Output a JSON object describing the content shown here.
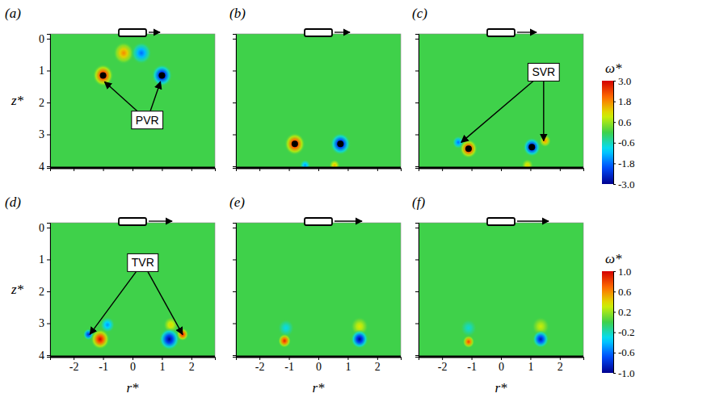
{
  "chart_data": {
    "type": "heatmap",
    "xlabel": "r*",
    "ylabel": "z*",
    "xlim": [
      -2.8,
      2.8
    ],
    "ylim": [
      -0.15,
      4.05
    ],
    "xticks": [
      -2,
      -1,
      0,
      1,
      2
    ],
    "yticks": [
      0,
      1,
      2,
      3,
      4
    ],
    "rows": [
      {
        "colorbar": {
          "title": "ω*",
          "range": [
            -3,
            3
          ],
          "ticks": [
            {
              "value": 3,
              "label": "3.0"
            },
            {
              "value": 1.8,
              "label": "1.8"
            },
            {
              "value": 0.6,
              "label": "0.6"
            },
            {
              "value": -0.6,
              "label": "-0.6"
            },
            {
              "value": -1.8,
              "label": "-1.8"
            },
            {
              "value": -3,
              "label": "-3.0"
            }
          ]
        },
        "panels": [
          {
            "label": "(a)",
            "tick_labels": "y",
            "vortices": [
              {
                "r": -0.3,
                "z": 0.45,
                "omega": 1.8,
                "radius": 0.35
              },
              {
                "r": 0.3,
                "z": 0.45,
                "omega": -1.8,
                "radius": 0.35
              },
              {
                "r": -1.0,
                "z": 1.15,
                "omega": 3.0,
                "radius": 0.35,
                "marker": "dot"
              },
              {
                "r": 1.0,
                "z": 1.15,
                "omega": -3.0,
                "radius": 0.35,
                "marker": "dot"
              }
            ],
            "annotation": {
              "text": "PVR",
              "at": [
                0.5,
                2.55
              ],
              "targets": [
                [
                  -0.95,
                  1.35
                ],
                [
                  0.95,
                  1.35
                ]
              ]
            }
          },
          {
            "label": "(b)",
            "tick_labels": false,
            "vortices": [
              {
                "r": -0.45,
                "z": 3.97,
                "omega": -1.5,
                "radius": 0.18
              },
              {
                "r": 0.55,
                "z": 3.97,
                "omega": 1.5,
                "radius": 0.18
              },
              {
                "r": -0.8,
                "z": 3.3,
                "omega": 3.0,
                "radius": 0.35,
                "marker": "dot"
              },
              {
                "r": 0.75,
                "z": 3.3,
                "omega": -3.0,
                "radius": 0.35,
                "marker": "dot"
              }
            ]
          },
          {
            "label": "(c)",
            "tick_labels": false,
            "vortices": [
              {
                "r": -1.45,
                "z": 3.25,
                "omega": -1.8,
                "radius": 0.2
              },
              {
                "r": 1.5,
                "z": 3.2,
                "omega": 1.8,
                "radius": 0.2
              },
              {
                "r": 0.9,
                "z": 3.97,
                "omega": 1.2,
                "radius": 0.2
              },
              {
                "r": -1.1,
                "z": 3.45,
                "omega": 3.0,
                "radius": 0.3,
                "marker": "dot"
              },
              {
                "r": 1.05,
                "z": 3.4,
                "omega": -3.0,
                "radius": 0.3,
                "marker": "dot"
              }
            ],
            "annotation": {
              "text": "SVR",
              "at": [
                1.45,
                1.05
              ],
              "targets": [
                [
                  -1.35,
                  3.25
                ],
                [
                  1.45,
                  3.2
                ]
              ]
            }
          }
        ]
      },
      {
        "colorbar": {
          "title": "ω*",
          "range": [
            -1,
            1
          ],
          "ticks": [
            {
              "value": 1,
              "label": "1.0"
            },
            {
              "value": 0.6,
              "label": "0.6"
            },
            {
              "value": 0.2,
              "label": "0.2"
            },
            {
              "value": -0.2,
              "label": "-0.2"
            },
            {
              "value": -0.6,
              "label": "-0.6"
            },
            {
              "value": -1,
              "label": "-1.0"
            }
          ]
        },
        "panels": [
          {
            "label": "(d)",
            "tick_labels": true,
            "vortices": [
              {
                "r": -0.85,
                "z": 3.05,
                "omega": -0.5,
                "radius": 0.25
              },
              {
                "r": -1.5,
                "z": 3.35,
                "omega": -0.8,
                "radius": 0.18
              },
              {
                "r": 1.7,
                "z": 3.35,
                "omega": 0.9,
                "radius": 0.2
              },
              {
                "r": 1.3,
                "z": 3.05,
                "omega": 0.4,
                "radius": 0.25
              },
              {
                "r": -1.1,
                "z": 3.5,
                "omega": 1.0,
                "radius": 0.32
              },
              {
                "r": 1.25,
                "z": 3.5,
                "omega": -1.0,
                "radius": 0.35
              }
            ],
            "annotation": {
              "text": "TVR",
              "at": [
                0.35,
                1.1
              ],
              "targets": [
                [
                  -1.45,
                  3.35
                ],
                [
                  1.7,
                  3.35
                ]
              ]
            }
          },
          {
            "label": "(e)",
            "tick_labels": "x",
            "vortices": [
              {
                "r": -1.1,
                "z": 3.15,
                "omega": -0.3,
                "radius": 0.28
              },
              {
                "r": 1.4,
                "z": 3.1,
                "omega": 0.35,
                "radius": 0.3
              },
              {
                "r": -1.15,
                "z": 3.55,
                "omega": 0.9,
                "radius": 0.22
              },
              {
                "r": 1.4,
                "z": 3.5,
                "omega": -1.0,
                "radius": 0.3
              }
            ]
          },
          {
            "label": "(f)",
            "tick_labels": "x",
            "vortices": [
              {
                "r": -1.1,
                "z": 3.15,
                "omega": -0.25,
                "radius": 0.28
              },
              {
                "r": 1.35,
                "z": 3.1,
                "omega": 0.3,
                "radius": 0.3
              },
              {
                "r": -1.1,
                "z": 3.58,
                "omega": 0.8,
                "radius": 0.2
              },
              {
                "r": 1.35,
                "z": 3.5,
                "omega": -0.9,
                "radius": 0.28
              }
            ]
          }
        ]
      }
    ]
  }
}
